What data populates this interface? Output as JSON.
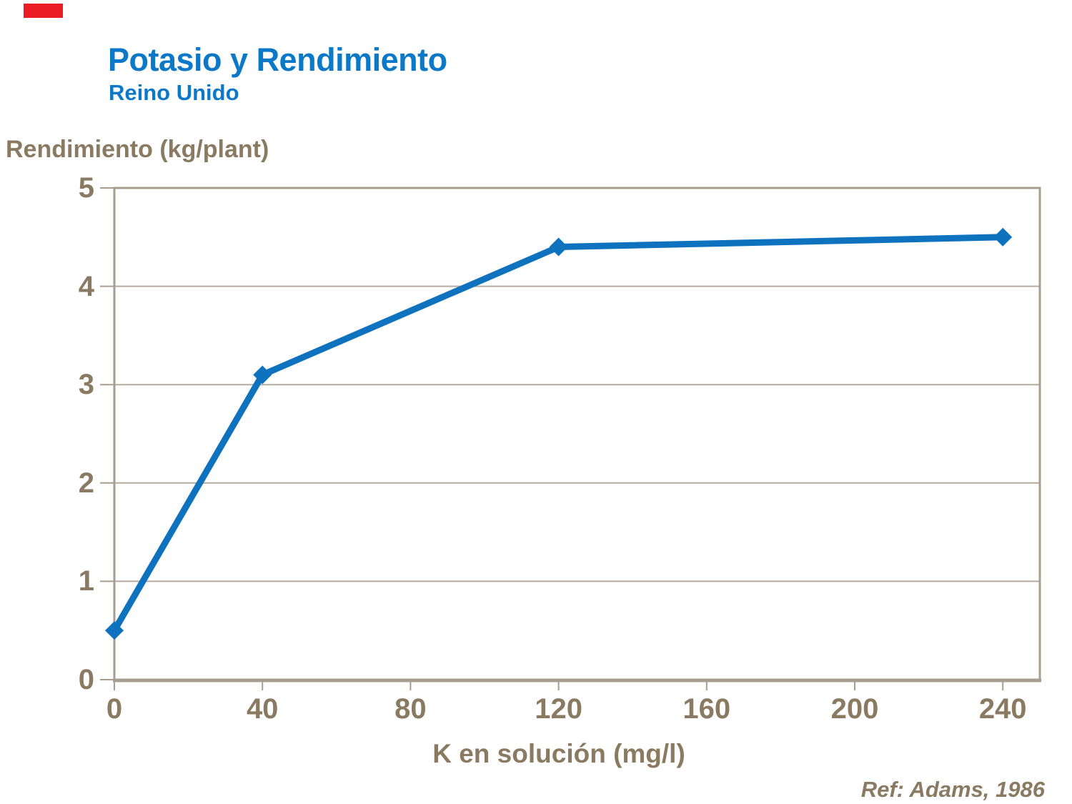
{
  "logo": {
    "color": "#EC1C24"
  },
  "header": {
    "title": "Potasio y Rendimiento",
    "subtitle": "Reino Unido",
    "color": "#0C78C8"
  },
  "footer": {
    "reference": "Ref: Adams, 1986"
  },
  "chart_data": {
    "type": "line",
    "title": "Potasio y Rendimiento",
    "subtitle": "Reino Unido",
    "xlabel": "K en solución (mg/l)",
    "ylabel": "Rendimiento (kg/plant)",
    "x": [
      0,
      40,
      120,
      240
    ],
    "y": [
      0.5,
      3.1,
      4.4,
      4.5
    ],
    "xticks": [
      0,
      40,
      80,
      120,
      160,
      200,
      240
    ],
    "yticks": [
      0,
      1,
      2,
      3,
      4,
      5
    ],
    "xlim": [
      0,
      250
    ],
    "ylim": [
      0,
      5
    ],
    "grid": "horizontal-only",
    "legend": "none",
    "marker": "diamond",
    "line_color": "#0E72BE",
    "axis_color": "#A89E90",
    "grid_color": "#B5AC9F",
    "text_color": "#8A7A62"
  }
}
